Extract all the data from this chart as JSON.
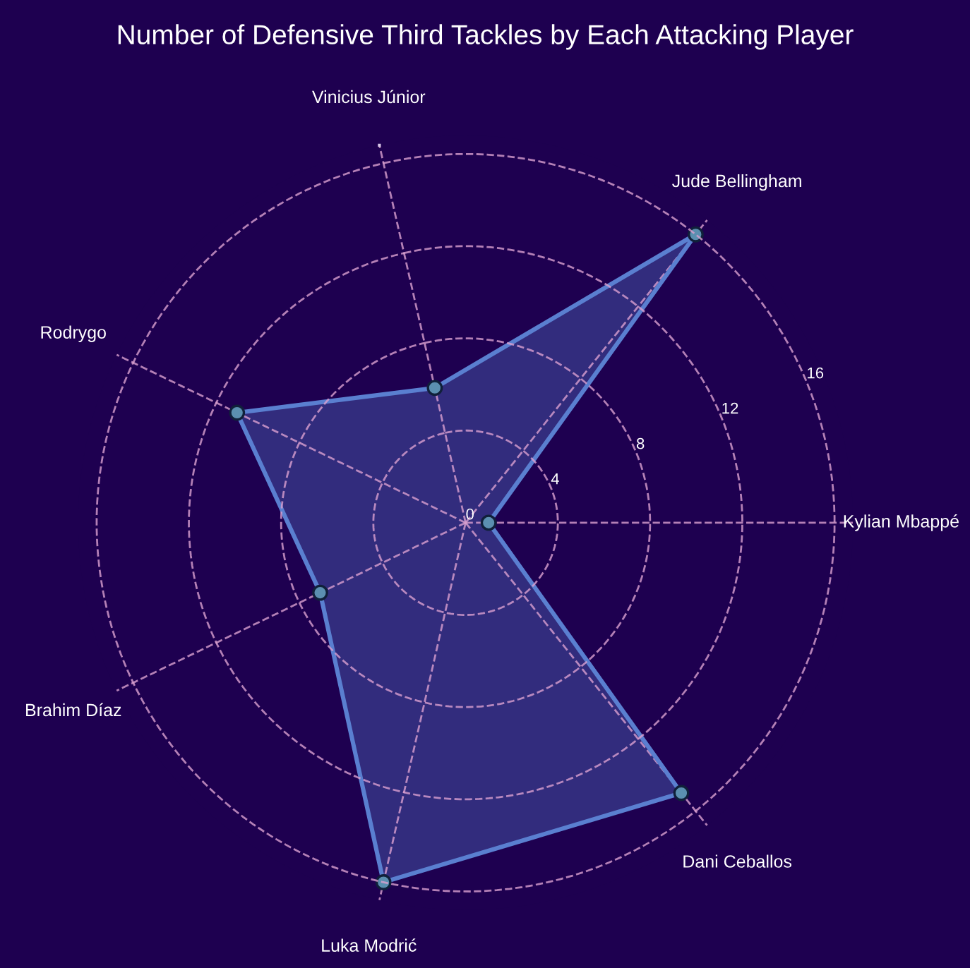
{
  "chart_data": {
    "type": "radar",
    "title": "Number of Defensive Third Tackles by Each Attacking Player",
    "categories": [
      "Vinicius Júnior",
      "Jude Bellingham",
      "Kylian Mbappé",
      "Dani Ceballos",
      "Luka Modrić",
      "Brahim Díaz",
      "Rodrygo"
    ],
    "series": [
      {
        "color": "#5a7fd0",
        "values": [
          6,
          16,
          1,
          15,
          16,
          7,
          11
        ]
      }
    ],
    "ylim": [
      0,
      16.8
    ],
    "yticks": [
      0,
      4,
      8,
      12,
      16
    ],
    "grid": true,
    "marker": "circle",
    "line_style": "solid"
  }
}
